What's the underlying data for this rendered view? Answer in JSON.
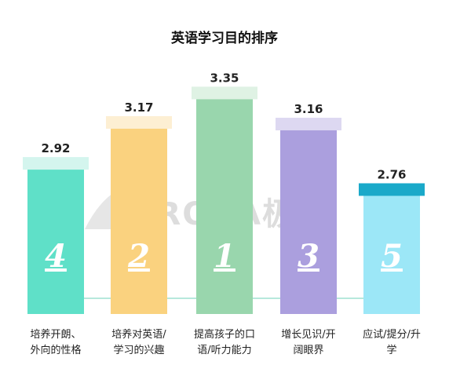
{
  "chart_data": {
    "type": "bar",
    "title": "英语学习目的排序",
    "categories": [
      [
        "培养开朗、",
        "外向的性格"
      ],
      [
        "培养对英语/",
        "学习的兴趣"
      ],
      [
        "提高孩子的口",
        "语/听力能力"
      ],
      [
        "增长见识/开",
        "阔眼界"
      ],
      [
        "应试/提分/升",
        "学"
      ]
    ],
    "values": [
      2.92,
      3.17,
      3.35,
      3.16,
      2.76
    ],
    "value_labels": [
      "2.92",
      "3.17",
      "3.35",
      "3.16",
      "2.76"
    ],
    "ranks": [
      "4",
      "2",
      "1",
      "3",
      "5"
    ],
    "bar_colors": [
      "#5fe0c8",
      "#fad27f",
      "#99d6ad",
      "#ab9fde",
      "#9ce7f7"
    ],
    "cap_colors": [
      "#d4f5ee",
      "#fdefd3",
      "#dff2e4",
      "#ddd8f1",
      "#1aa9c9"
    ],
    "ylim": [
      2.0,
      3.4
    ],
    "grid": false,
    "watermark": "URORA极光"
  }
}
